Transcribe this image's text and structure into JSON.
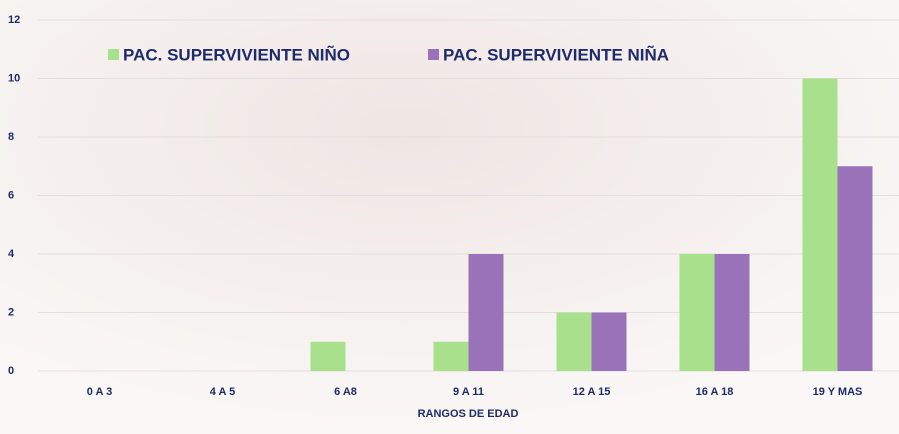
{
  "chart_data": {
    "type": "bar",
    "x_label": "RANGOS DE EDAD",
    "categories": [
      "0 A 3",
      "4 A 5",
      "6 A8",
      "9 A 11",
      "12 A 15",
      "16 A 18",
      "19 Y MAS"
    ],
    "series": [
      {
        "name": "PAC. SUPERVIVIENTE NIÑO",
        "color": "#a8e08c",
        "values": [
          0,
          0,
          1,
          1,
          2,
          4,
          10
        ]
      },
      {
        "name": "PAC. SUPERVIVIENTE NIÑA",
        "color": "#9a72b9",
        "values": [
          0,
          0,
          0,
          4,
          2,
          4,
          7
        ]
      }
    ],
    "ylim": [
      0,
      12
    ],
    "yticks": [
      0,
      2,
      4,
      6,
      8,
      10,
      12
    ],
    "grid": true
  }
}
